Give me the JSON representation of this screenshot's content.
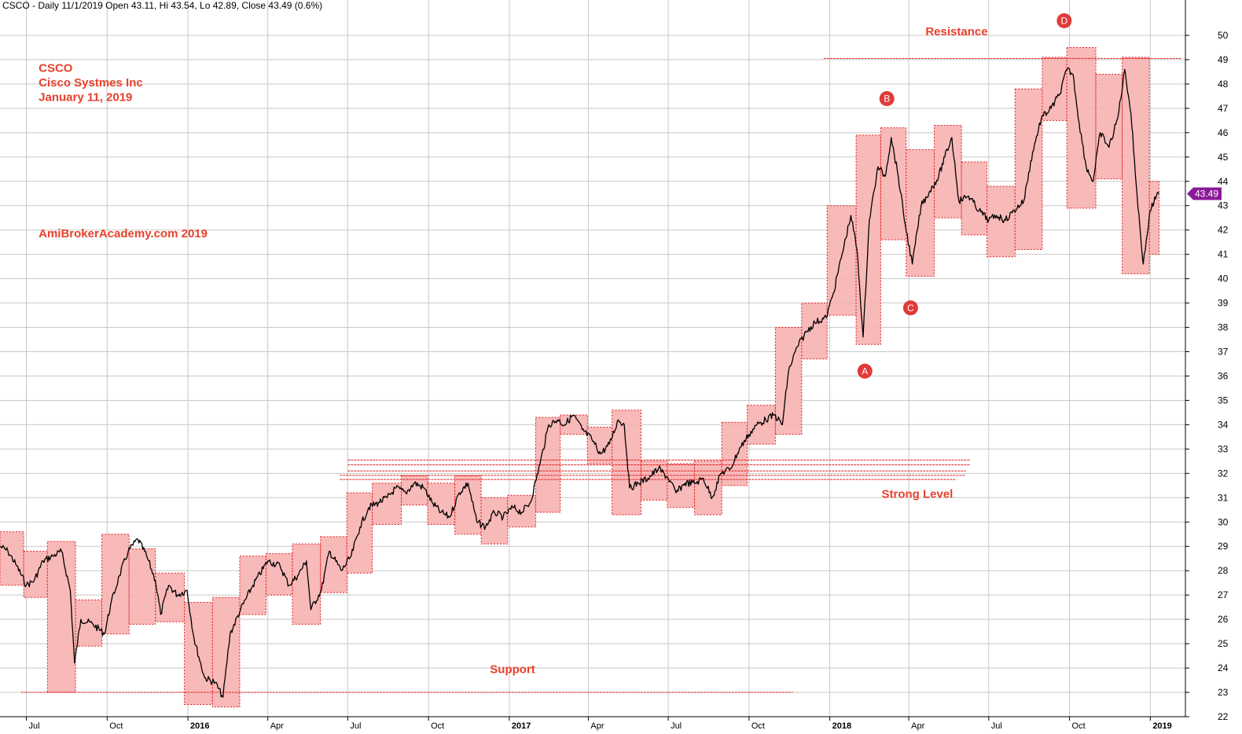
{
  "header": "CSCO - Daily 11/1/2019 Open 43.11, Hi 43.54, Lo 42.89, Close 43.49 (0.6%)",
  "colors": {
    "grid": "#c8c8c8",
    "price": "#000000",
    "box_fill": "#f7b1b1",
    "box_border": "#e02020",
    "annotation": "#e8412c",
    "marker": "#e03a3a",
    "last_price_tag": "#8b1a9a"
  },
  "labels": {
    "title_lines": [
      "CSCO",
      "Cisco Systmes Inc",
      "January 11, 2019"
    ],
    "watermark": "AmiBrokerAcademy.com  2019",
    "resistance": "Resistance",
    "strong_level": "Strong Level",
    "support": "Support",
    "last_price": "43.49"
  },
  "chart_data": {
    "type": "line",
    "title": "",
    "xlabel": "",
    "ylabel": "",
    "ylim": [
      22,
      51
    ],
    "xlim": [
      "2015-06-01",
      "2019-02-10"
    ],
    "grid": true,
    "y_ticks": [
      22,
      23,
      24,
      25,
      26,
      27,
      28,
      29,
      30,
      31,
      32,
      33,
      34,
      35,
      36,
      37,
      38,
      39,
      40,
      41,
      42,
      43,
      44,
      45,
      46,
      47,
      48,
      49,
      50
    ],
    "x_ticks": [
      {
        "date": "2015-07-01",
        "label": "Jul",
        "year": false
      },
      {
        "date": "2015-10-01",
        "label": "Oct",
        "year": false
      },
      {
        "date": "2016-01-01",
        "label": "2016",
        "year": true
      },
      {
        "date": "2016-04-01",
        "label": "Apr",
        "year": false
      },
      {
        "date": "2016-07-01",
        "label": "Jul",
        "year": false
      },
      {
        "date": "2016-10-01",
        "label": "Oct",
        "year": false
      },
      {
        "date": "2017-01-01",
        "label": "2017",
        "year": true
      },
      {
        "date": "2017-04-01",
        "label": "Apr",
        "year": false
      },
      {
        "date": "2017-07-01",
        "label": "Jul",
        "year": false
      },
      {
        "date": "2017-10-01",
        "label": "Oct",
        "year": false
      },
      {
        "date": "2018-01-01",
        "label": "2018",
        "year": true
      },
      {
        "date": "2018-04-01",
        "label": "Apr",
        "year": false
      },
      {
        "date": "2018-07-01",
        "label": "Jul",
        "year": false
      },
      {
        "date": "2018-10-01",
        "label": "Oct",
        "year": false
      },
      {
        "date": "2019-01-01",
        "label": "2019",
        "year": true
      }
    ],
    "series": [
      {
        "values_note": "",
        "points": [
          [
            "2015-06-01",
            29.0
          ],
          [
            "2015-06-10",
            28.8
          ],
          [
            "2015-06-20",
            28.2
          ],
          [
            "2015-07-01",
            27.4
          ],
          [
            "2015-07-10",
            27.6
          ],
          [
            "2015-07-20",
            28.4
          ],
          [
            "2015-07-31",
            28.6
          ],
          [
            "2015-08-10",
            28.8
          ],
          [
            "2015-08-20",
            27.2
          ],
          [
            "2015-08-25",
            24.2
          ],
          [
            "2015-09-01",
            26.0
          ],
          [
            "2015-09-15",
            25.8
          ],
          [
            "2015-09-28",
            25.4
          ],
          [
            "2015-10-05",
            26.6
          ],
          [
            "2015-10-15",
            27.8
          ],
          [
            "2015-10-25",
            28.8
          ],
          [
            "2015-11-05",
            29.3
          ],
          [
            "2015-11-15",
            28.6
          ],
          [
            "2015-11-25",
            27.6
          ],
          [
            "2015-12-01",
            26.2
          ],
          [
            "2015-12-10",
            27.4
          ],
          [
            "2015-12-20",
            27.0
          ],
          [
            "2015-12-31",
            27.2
          ],
          [
            "2016-01-08",
            25.2
          ],
          [
            "2016-01-20",
            23.6
          ],
          [
            "2016-02-01",
            23.4
          ],
          [
            "2016-02-10",
            22.8
          ],
          [
            "2016-02-18",
            25.4
          ],
          [
            "2016-03-01",
            26.4
          ],
          [
            "2016-03-15",
            27.4
          ],
          [
            "2016-04-01",
            28.4
          ],
          [
            "2016-04-15",
            28.2
          ],
          [
            "2016-04-25",
            27.4
          ],
          [
            "2016-05-05",
            27.8
          ],
          [
            "2016-05-15",
            28.4
          ],
          [
            "2016-05-20",
            26.4
          ],
          [
            "2016-06-01",
            27.2
          ],
          [
            "2016-06-10",
            28.8
          ],
          [
            "2016-06-24",
            28.0
          ],
          [
            "2016-07-05",
            28.6
          ],
          [
            "2016-07-15",
            29.8
          ],
          [
            "2016-07-25",
            30.6
          ],
          [
            "2016-08-05",
            30.8
          ],
          [
            "2016-08-15",
            31.0
          ],
          [
            "2016-08-25",
            31.4
          ],
          [
            "2016-09-05",
            31.2
          ],
          [
            "2016-09-15",
            31.6
          ],
          [
            "2016-09-26",
            31.4
          ],
          [
            "2016-10-05",
            30.8
          ],
          [
            "2016-10-15",
            30.4
          ],
          [
            "2016-10-25",
            30.2
          ],
          [
            "2016-11-05",
            31.2
          ],
          [
            "2016-11-15",
            31.6
          ],
          [
            "2016-11-25",
            30.0
          ],
          [
            "2016-12-05",
            29.8
          ],
          [
            "2016-12-15",
            30.4
          ],
          [
            "2016-12-25",
            30.2
          ],
          [
            "2017-01-05",
            30.6
          ],
          [
            "2017-01-15",
            30.4
          ],
          [
            "2017-01-25",
            30.8
          ],
          [
            "2017-02-05",
            32.4
          ],
          [
            "2017-02-15",
            34.0
          ],
          [
            "2017-02-25",
            34.2
          ],
          [
            "2017-03-05",
            34.0
          ],
          [
            "2017-03-15",
            34.4
          ],
          [
            "2017-03-25",
            33.8
          ],
          [
            "2017-04-05",
            33.4
          ],
          [
            "2017-04-15",
            32.8
          ],
          [
            "2017-04-25",
            33.2
          ],
          [
            "2017-05-05",
            34.2
          ],
          [
            "2017-05-12",
            34.0
          ],
          [
            "2017-05-18",
            31.4
          ],
          [
            "2017-05-28",
            31.6
          ],
          [
            "2017-06-08",
            31.8
          ],
          [
            "2017-06-20",
            32.2
          ],
          [
            "2017-07-01",
            31.8
          ],
          [
            "2017-07-10",
            31.2
          ],
          [
            "2017-07-20",
            31.6
          ],
          [
            "2017-08-01",
            31.6
          ],
          [
            "2017-08-10",
            31.8
          ],
          [
            "2017-08-20",
            31.0
          ],
          [
            "2017-08-30",
            32.0
          ],
          [
            "2017-09-10",
            32.2
          ],
          [
            "2017-09-20",
            33.0
          ],
          [
            "2017-10-01",
            33.6
          ],
          [
            "2017-10-10",
            34.0
          ],
          [
            "2017-10-20",
            34.2
          ],
          [
            "2017-10-30",
            34.4
          ],
          [
            "2017-11-08",
            34.0
          ],
          [
            "2017-11-15",
            36.2
          ],
          [
            "2017-11-25",
            37.2
          ],
          [
            "2017-12-05",
            37.8
          ],
          [
            "2017-12-15",
            38.2
          ],
          [
            "2017-12-28",
            38.4
          ],
          [
            "2018-01-05",
            39.4
          ],
          [
            "2018-01-15",
            41.0
          ],
          [
            "2018-01-25",
            42.6
          ],
          [
            "2018-02-01",
            41.2
          ],
          [
            "2018-02-08",
            37.6
          ],
          [
            "2018-02-15",
            42.4
          ],
          [
            "2018-02-25",
            44.6
          ],
          [
            "2018-03-05",
            44.2
          ],
          [
            "2018-03-12",
            45.8
          ],
          [
            "2018-03-20",
            44.2
          ],
          [
            "2018-03-28",
            42.2
          ],
          [
            "2018-04-05",
            40.6
          ],
          [
            "2018-04-15",
            43.0
          ],
          [
            "2018-04-25",
            43.6
          ],
          [
            "2018-05-05",
            44.2
          ],
          [
            "2018-05-12",
            45.0
          ],
          [
            "2018-05-20",
            45.8
          ],
          [
            "2018-05-28",
            43.2
          ],
          [
            "2018-06-08",
            43.4
          ],
          [
            "2018-06-20",
            42.8
          ],
          [
            "2018-07-01",
            42.4
          ],
          [
            "2018-07-10",
            42.6
          ],
          [
            "2018-07-20",
            42.4
          ],
          [
            "2018-07-30",
            42.8
          ],
          [
            "2018-08-10",
            43.2
          ],
          [
            "2018-08-20",
            45.2
          ],
          [
            "2018-08-30",
            46.6
          ],
          [
            "2018-09-10",
            47.0
          ],
          [
            "2018-09-20",
            47.6
          ],
          [
            "2018-09-28",
            48.6
          ],
          [
            "2018-10-05",
            48.4
          ],
          [
            "2018-10-12",
            46.4
          ],
          [
            "2018-10-20",
            44.6
          ],
          [
            "2018-10-28",
            44.0
          ],
          [
            "2018-11-05",
            46.0
          ],
          [
            "2018-11-15",
            45.4
          ],
          [
            "2018-11-25",
            46.6
          ],
          [
            "2018-12-03",
            48.6
          ],
          [
            "2018-12-10",
            46.8
          ],
          [
            "2018-12-17",
            43.4
          ],
          [
            "2018-12-24",
            40.6
          ],
          [
            "2019-01-01",
            42.8
          ],
          [
            "2019-01-08",
            43.4
          ],
          [
            "2019-01-11",
            43.49
          ]
        ]
      }
    ],
    "boxes": [
      {
        "start": "2015-06-01",
        "end": "2015-06-28",
        "low": 27.4,
        "high": 29.6
      },
      {
        "start": "2015-06-28",
        "end": "2015-07-25",
        "low": 26.9,
        "high": 28.8
      },
      {
        "start": "2015-07-25",
        "end": "2015-08-26",
        "low": 23.0,
        "high": 29.2
      },
      {
        "start": "2015-08-26",
        "end": "2015-09-25",
        "low": 24.9,
        "high": 26.8
      },
      {
        "start": "2015-09-25",
        "end": "2015-10-26",
        "low": 25.4,
        "high": 29.5
      },
      {
        "start": "2015-10-26",
        "end": "2015-11-25",
        "low": 25.8,
        "high": 28.9
      },
      {
        "start": "2015-11-25",
        "end": "2015-12-28",
        "low": 25.9,
        "high": 27.9
      },
      {
        "start": "2015-12-28",
        "end": "2016-01-29",
        "low": 22.5,
        "high": 26.7
      },
      {
        "start": "2016-01-29",
        "end": "2016-02-29",
        "low": 22.4,
        "high": 26.9
      },
      {
        "start": "2016-02-29",
        "end": "2016-03-30",
        "low": 26.2,
        "high": 28.6
      },
      {
        "start": "2016-03-30",
        "end": "2016-04-29",
        "low": 27.0,
        "high": 28.7
      },
      {
        "start": "2016-04-29",
        "end": "2016-05-31",
        "low": 25.8,
        "high": 29.1
      },
      {
        "start": "2016-05-31",
        "end": "2016-06-30",
        "low": 27.1,
        "high": 29.4
      },
      {
        "start": "2016-06-30",
        "end": "2016-07-29",
        "low": 27.9,
        "high": 31.2
      },
      {
        "start": "2016-07-29",
        "end": "2016-08-31",
        "low": 29.9,
        "high": 31.6
      },
      {
        "start": "2016-08-31",
        "end": "2016-09-30",
        "low": 30.7,
        "high": 31.9
      },
      {
        "start": "2016-09-30",
        "end": "2016-10-31",
        "low": 29.9,
        "high": 31.6
      },
      {
        "start": "2016-10-31",
        "end": "2016-11-30",
        "low": 29.5,
        "high": 31.9
      },
      {
        "start": "2016-11-30",
        "end": "2016-12-30",
        "low": 29.1,
        "high": 31.0
      },
      {
        "start": "2016-12-30",
        "end": "2017-01-31",
        "low": 29.8,
        "high": 31.1
      },
      {
        "start": "2017-01-31",
        "end": "2017-02-28",
        "low": 30.4,
        "high": 34.3
      },
      {
        "start": "2017-02-28",
        "end": "2017-03-31",
        "low": 33.6,
        "high": 34.4
      },
      {
        "start": "2017-03-31",
        "end": "2017-04-28",
        "low": 32.4,
        "high": 33.9
      },
      {
        "start": "2017-04-28",
        "end": "2017-05-31",
        "low": 30.3,
        "high": 34.6
      },
      {
        "start": "2017-05-31",
        "end": "2017-06-30",
        "low": 30.9,
        "high": 32.5
      },
      {
        "start": "2017-06-30",
        "end": "2017-07-31",
        "low": 30.6,
        "high": 32.4
      },
      {
        "start": "2017-07-31",
        "end": "2017-08-31",
        "low": 30.3,
        "high": 32.5
      },
      {
        "start": "2017-08-31",
        "end": "2017-09-29",
        "low": 31.5,
        "high": 34.1
      },
      {
        "start": "2017-09-29",
        "end": "2017-10-31",
        "low": 33.2,
        "high": 34.8
      },
      {
        "start": "2017-10-31",
        "end": "2017-11-30",
        "low": 33.6,
        "high": 38.0
      },
      {
        "start": "2017-11-30",
        "end": "2017-12-29",
        "low": 36.7,
        "high": 39.0
      },
      {
        "start": "2017-12-29",
        "end": "2018-01-31",
        "low": 38.5,
        "high": 43.0
      },
      {
        "start": "2018-01-31",
        "end": "2018-02-28",
        "low": 37.3,
        "high": 45.9
      },
      {
        "start": "2018-02-28",
        "end": "2018-03-29",
        "low": 41.6,
        "high": 46.2
      },
      {
        "start": "2018-03-29",
        "end": "2018-04-30",
        "low": 40.1,
        "high": 45.3
      },
      {
        "start": "2018-04-30",
        "end": "2018-05-31",
        "low": 42.5,
        "high": 46.3
      },
      {
        "start": "2018-05-31",
        "end": "2018-06-29",
        "low": 41.8,
        "high": 44.8
      },
      {
        "start": "2018-06-29",
        "end": "2018-07-31",
        "low": 40.9,
        "high": 43.8
      },
      {
        "start": "2018-07-31",
        "end": "2018-08-31",
        "low": 41.2,
        "high": 47.8
      },
      {
        "start": "2018-08-31",
        "end": "2018-09-28",
        "low": 46.5,
        "high": 49.1
      },
      {
        "start": "2018-09-28",
        "end": "2018-10-31",
        "low": 42.9,
        "high": 49.5
      },
      {
        "start": "2018-10-31",
        "end": "2018-11-30",
        "low": 44.1,
        "high": 48.4
      },
      {
        "start": "2018-11-30",
        "end": "2018-12-31",
        "low": 40.2,
        "high": 49.1
      },
      {
        "start": "2018-12-31",
        "end": "2019-01-11",
        "low": 41.0,
        "high": 44.0
      }
    ],
    "hlines": [
      {
        "name": "resistance",
        "start": "2017-12-25",
        "end": "2019-02-05",
        "y": 49.05
      },
      {
        "name": "strong_1",
        "start": "2016-07-01",
        "end": "2018-06-10",
        "y": 32.55
      },
      {
        "name": "strong_2",
        "start": "2016-07-01",
        "end": "2018-06-10",
        "y": 32.35
      },
      {
        "name": "strong_3",
        "start": "2016-07-01",
        "end": "2018-06-05",
        "y": 32.1
      },
      {
        "name": "strong_4",
        "start": "2016-06-22",
        "end": "2018-06-05",
        "y": 31.92
      },
      {
        "name": "strong_5",
        "start": "2016-06-22",
        "end": "2018-05-25",
        "y": 31.75
      },
      {
        "name": "support",
        "start": "2015-06-25",
        "end": "2017-11-20",
        "y": 23.0
      }
    ],
    "annotations": [
      {
        "label": "CSCO",
        "date": "2015-07-15",
        "y": 48.5
      },
      {
        "label": "Cisco Systmes Inc",
        "date": "2015-07-15",
        "y": 47.9
      },
      {
        "label": "January 11, 2019",
        "date": "2015-07-15",
        "y": 47.3
      },
      {
        "label": "AmiBrokerAcademy.com  2019",
        "date": "2015-07-15",
        "y": 41.7
      },
      {
        "label": "Resistance",
        "date": "2018-04-20",
        "y": 50.0
      },
      {
        "label": "Strong Level",
        "date": "2018-03-01",
        "y": 31.0
      },
      {
        "label": "Support",
        "date": "2016-12-10",
        "y": 23.8
      }
    ],
    "markers": [
      {
        "label": "A",
        "date": "2018-02-10",
        "y": 36.2
      },
      {
        "label": "B",
        "date": "2018-03-07",
        "y": 47.4
      },
      {
        "label": "C",
        "date": "2018-04-03",
        "y": 38.8
      },
      {
        "label": "D",
        "date": "2018-09-25",
        "y": 50.6
      }
    ],
    "last_price": 43.49
  }
}
